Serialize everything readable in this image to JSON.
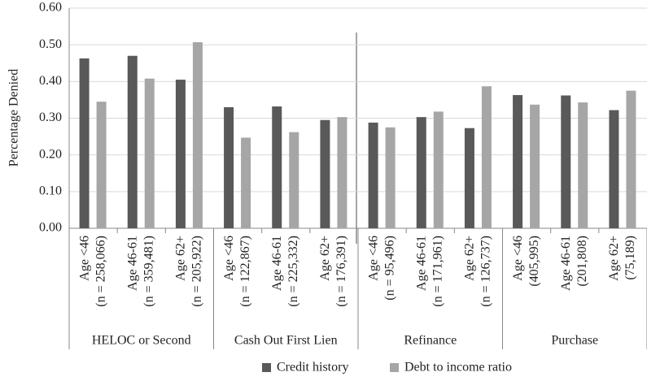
{
  "chart_data": {
    "type": "bar",
    "y_label": "Percentage Denied",
    "groups": [
      "HELOC or Second",
      "Cash Out First Lien",
      "Refinance",
      "Purchase"
    ],
    "categories": [
      [
        "Age <46",
        "(n = 258,066)"
      ],
      [
        "Age 46-61",
        "(n = 359,481)"
      ],
      [
        "Age 62+",
        "(n = 205,922)"
      ],
      [
        "Age <46",
        "(n = 122,867)"
      ],
      [
        "Age 46-61",
        "(n = 225,332)"
      ],
      [
        "Age 62+",
        "(n = 176,391)"
      ],
      [
        "Age <46",
        "(n = 95,496)"
      ],
      [
        "Age 46-61",
        "(n = 171,961)"
      ],
      [
        "Age  62+",
        "(n = 126,737)"
      ],
      [
        "Age <46",
        "(405,995)"
      ],
      [
        "Age 46-61",
        "(201,808)"
      ],
      [
        "Age 62+",
        "(75,189)"
      ]
    ],
    "series": [
      {
        "name": "Credit history",
        "color": "#595959",
        "values": [
          0.463,
          0.47,
          0.405,
          0.33,
          0.332,
          0.295,
          0.288,
          0.303,
          0.273,
          0.363,
          0.362,
          0.322
        ]
      },
      {
        "name": "Debt to income ratio",
        "color": "#a6a6a6",
        "values": [
          0.345,
          0.408,
          0.507,
          0.247,
          0.262,
          0.303,
          0.275,
          0.318,
          0.387,
          0.337,
          0.343,
          0.375
        ]
      }
    ],
    "ylim": [
      0,
      0.6
    ],
    "yticks": [
      {
        "value": 0,
        "label": "0.00"
      },
      {
        "value": 0.1,
        "label": "0.10"
      },
      {
        "value": 0.2,
        "label": "0.20"
      },
      {
        "value": 0.3,
        "label": "0.30"
      },
      {
        "value": 0.4,
        "label": "0.40"
      },
      {
        "value": 0.5,
        "label": "0.50"
      },
      {
        "value": 0.6,
        "label": "0.60"
      }
    ],
    "grid": true,
    "legend": "bottom"
  }
}
